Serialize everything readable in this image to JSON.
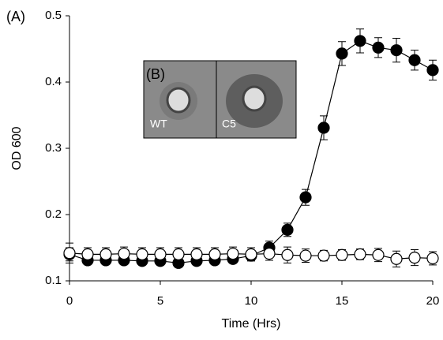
{
  "chart_data": {
    "type": "line",
    "panel_label": "(A)",
    "inset_label": "(B)",
    "inset_captions": [
      "WT",
      "C5"
    ],
    "x_label": "Time (Hrs)",
    "y_label": "OD 600",
    "x": [
      0,
      1,
      2,
      3,
      4,
      5,
      6,
      7,
      8,
      9,
      10,
      11,
      12,
      13,
      14,
      15,
      16,
      17,
      18,
      19,
      20
    ],
    "series": [
      {
        "color": "#000000",
        "marker_face": "#000000",
        "values": [
          0.14,
          0.131,
          0.131,
          0.131,
          0.13,
          0.13,
          0.127,
          0.13,
          0.131,
          0.133,
          0.138,
          0.15,
          0.177,
          0.226,
          0.331,
          0.443,
          0.462,
          0.452,
          0.448,
          0.433,
          0.418
        ],
        "errors": [
          0.01,
          0.006,
          0.006,
          0.006,
          0.006,
          0.006,
          0.006,
          0.006,
          0.006,
          0.006,
          0.008,
          0.01,
          0.01,
          0.012,
          0.018,
          0.018,
          0.018,
          0.015,
          0.018,
          0.015,
          0.015
        ]
      },
      {
        "color": "#000000",
        "marker_face": "#ffffff",
        "values": [
          0.142,
          0.14,
          0.14,
          0.141,
          0.14,
          0.14,
          0.14,
          0.14,
          0.14,
          0.141,
          0.14,
          0.141,
          0.139,
          0.138,
          0.138,
          0.139,
          0.14,
          0.139,
          0.133,
          0.135,
          0.134
        ],
        "errors": [
          0.015,
          0.01,
          0.01,
          0.01,
          0.01,
          0.01,
          0.01,
          0.01,
          0.01,
          0.01,
          0.01,
          0.01,
          0.012,
          0.01,
          0.008,
          0.008,
          0.008,
          0.01,
          0.012,
          0.012,
          0.01
        ]
      }
    ],
    "xlim": [
      0,
      20
    ],
    "xticks": [
      0,
      5,
      10,
      15,
      20
    ],
    "ylim": [
      0.1,
      0.5
    ],
    "yticks": [
      0.1,
      0.2,
      0.3,
      0.4,
      0.5
    ],
    "grid": false
  }
}
